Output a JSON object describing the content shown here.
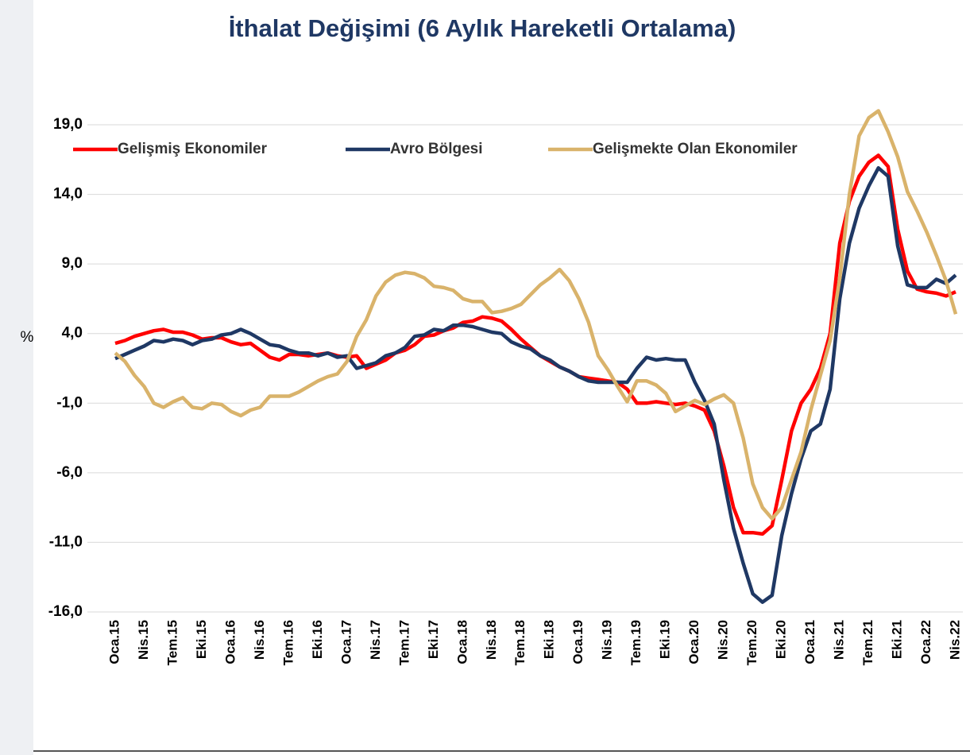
{
  "chart_data": {
    "type": "line",
    "title": "İthalat Değişimi (6 Aylık Hareketli Ortalama)",
    "y_label": "%",
    "categories": [
      "Oca.15",
      null,
      null,
      "Nis.15",
      null,
      null,
      "Tem.15",
      null,
      null,
      "Eki.15",
      null,
      null,
      "Oca.16",
      null,
      null,
      "Nis.16",
      null,
      null,
      "Tem.16",
      null,
      null,
      "Eki.16",
      null,
      null,
      "Oca.17",
      null,
      null,
      "Nis.17",
      null,
      null,
      "Tem.17",
      null,
      null,
      "Eki.17",
      null,
      null,
      "Oca.18",
      null,
      null,
      "Nis.18",
      null,
      null,
      "Tem.18",
      null,
      null,
      "Eki.18",
      null,
      null,
      "Oca.19",
      null,
      null,
      "Nis.19",
      null,
      null,
      "Tem.19",
      null,
      null,
      "Eki.19",
      null,
      null,
      "Oca.20",
      null,
      null,
      "Nis.20",
      null,
      null,
      "Tem.20",
      null,
      null,
      "Eki.20",
      null,
      null,
      "Oca.21",
      null,
      null,
      "Nis.21",
      null,
      null,
      "Tem.21",
      null,
      null,
      "Eki.21",
      null,
      null,
      "Oca.22",
      null,
      null,
      "Nis.22"
    ],
    "series": [
      {
        "name": "Gelişmiş Ekonomiler",
        "color": "#ff0000",
        "values": [
          3.3,
          3.5,
          3.8,
          4.0,
          4.2,
          4.3,
          4.1,
          4.1,
          3.9,
          3.6,
          3.7,
          3.7,
          3.4,
          3.2,
          3.3,
          2.8,
          2.3,
          2.1,
          2.5,
          2.5,
          2.4,
          2.5,
          2.6,
          2.4,
          2.3,
          2.4,
          1.5,
          1.8,
          2.1,
          2.6,
          2.8,
          3.2,
          3.8,
          3.9,
          4.2,
          4.4,
          4.8,
          4.9,
          5.2,
          5.1,
          4.9,
          4.3,
          3.6,
          3.0,
          2.4,
          2.0,
          1.6,
          1.3,
          0.9,
          0.8,
          0.7,
          0.6,
          0.5,
          0.0,
          -1.0,
          -1.0,
          -0.9,
          -1.0,
          -1.1,
          -1.0,
          -1.2,
          -1.5,
          -3.0,
          -5.5,
          -8.5,
          -10.3,
          -10.3,
          -10.4,
          -9.8,
          -6.5,
          -3.0,
          -1.0,
          0.0,
          1.5,
          4.0,
          10.5,
          13.5,
          15.3,
          16.3,
          16.8,
          16.0,
          11.5,
          8.5,
          7.2,
          7.0,
          6.9,
          6.7,
          7.0
        ]
      },
      {
        "name": "Avro Bölgesi",
        "color": "#1f3864",
        "values": [
          2.2,
          2.5,
          2.8,
          3.1,
          3.5,
          3.4,
          3.6,
          3.5,
          3.2,
          3.5,
          3.6,
          3.9,
          4.0,
          4.3,
          4.0,
          3.6,
          3.2,
          3.1,
          2.8,
          2.6,
          2.6,
          2.4,
          2.6,
          2.3,
          2.4,
          1.5,
          1.7,
          1.9,
          2.4,
          2.6,
          3.0,
          3.8,
          3.9,
          4.3,
          4.2,
          4.6,
          4.6,
          4.5,
          4.3,
          4.1,
          4.0,
          3.4,
          3.1,
          2.9,
          2.4,
          2.1,
          1.6,
          1.3,
          0.9,
          0.6,
          0.5,
          0.5,
          0.5,
          0.5,
          1.5,
          2.3,
          2.1,
          2.2,
          2.1,
          2.1,
          0.5,
          -0.8,
          -2.5,
          -6.5,
          -10.0,
          -12.5,
          -14.7,
          -15.3,
          -14.8,
          -10.5,
          -7.5,
          -5.0,
          -3.0,
          -2.5,
          0.0,
          6.5,
          10.5,
          13.0,
          14.6,
          15.9,
          15.3,
          10.3,
          7.5,
          7.3,
          7.3,
          7.9,
          7.6,
          8.2
        ]
      },
      {
        "name": "Gelişmekte Olan Ekonomiler",
        "color": "#d9b36b",
        "values": [
          2.6,
          2.0,
          1.0,
          0.2,
          -1.0,
          -1.3,
          -0.9,
          -0.6,
          -1.3,
          -1.4,
          -1.0,
          -1.1,
          -1.6,
          -1.9,
          -1.5,
          -1.3,
          -0.5,
          -0.5,
          -0.5,
          -0.2,
          0.2,
          0.6,
          0.9,
          1.1,
          2.0,
          3.8,
          5.0,
          6.7,
          7.7,
          8.2,
          8.4,
          8.3,
          8.0,
          7.4,
          7.3,
          7.1,
          6.5,
          6.3,
          6.3,
          5.5,
          5.6,
          5.8,
          6.1,
          6.8,
          7.5,
          8.0,
          8.6,
          7.8,
          6.5,
          4.8,
          2.4,
          1.4,
          0.2,
          -0.9,
          0.6,
          0.6,
          0.3,
          -0.3,
          -1.6,
          -1.2,
          -0.8,
          -1.1,
          -0.7,
          -0.4,
          -1.0,
          -3.5,
          -6.8,
          -8.5,
          -9.3,
          -8.5,
          -6.5,
          -4.5,
          -1.5,
          1.0,
          3.5,
          8.0,
          14.0,
          18.2,
          19.5,
          20.0,
          18.5,
          16.7,
          14.2,
          12.8,
          11.3,
          9.6,
          7.8,
          5.4
        ]
      }
    ],
    "ylim": [
      -16,
      21
    ],
    "yticks": [
      {
        "value": -16,
        "label": "-16,0"
      },
      {
        "value": -11,
        "label": "-11,0"
      },
      {
        "value": -6,
        "label": "-6,0"
      },
      {
        "value": -1,
        "label": "-1,0"
      },
      {
        "value": 4,
        "label": "4,0"
      },
      {
        "value": 9,
        "label": "9,0"
      },
      {
        "value": 14,
        "label": "14,0"
      },
      {
        "value": 19,
        "label": "19,0"
      }
    ],
    "grid": true,
    "legend": "top"
  }
}
